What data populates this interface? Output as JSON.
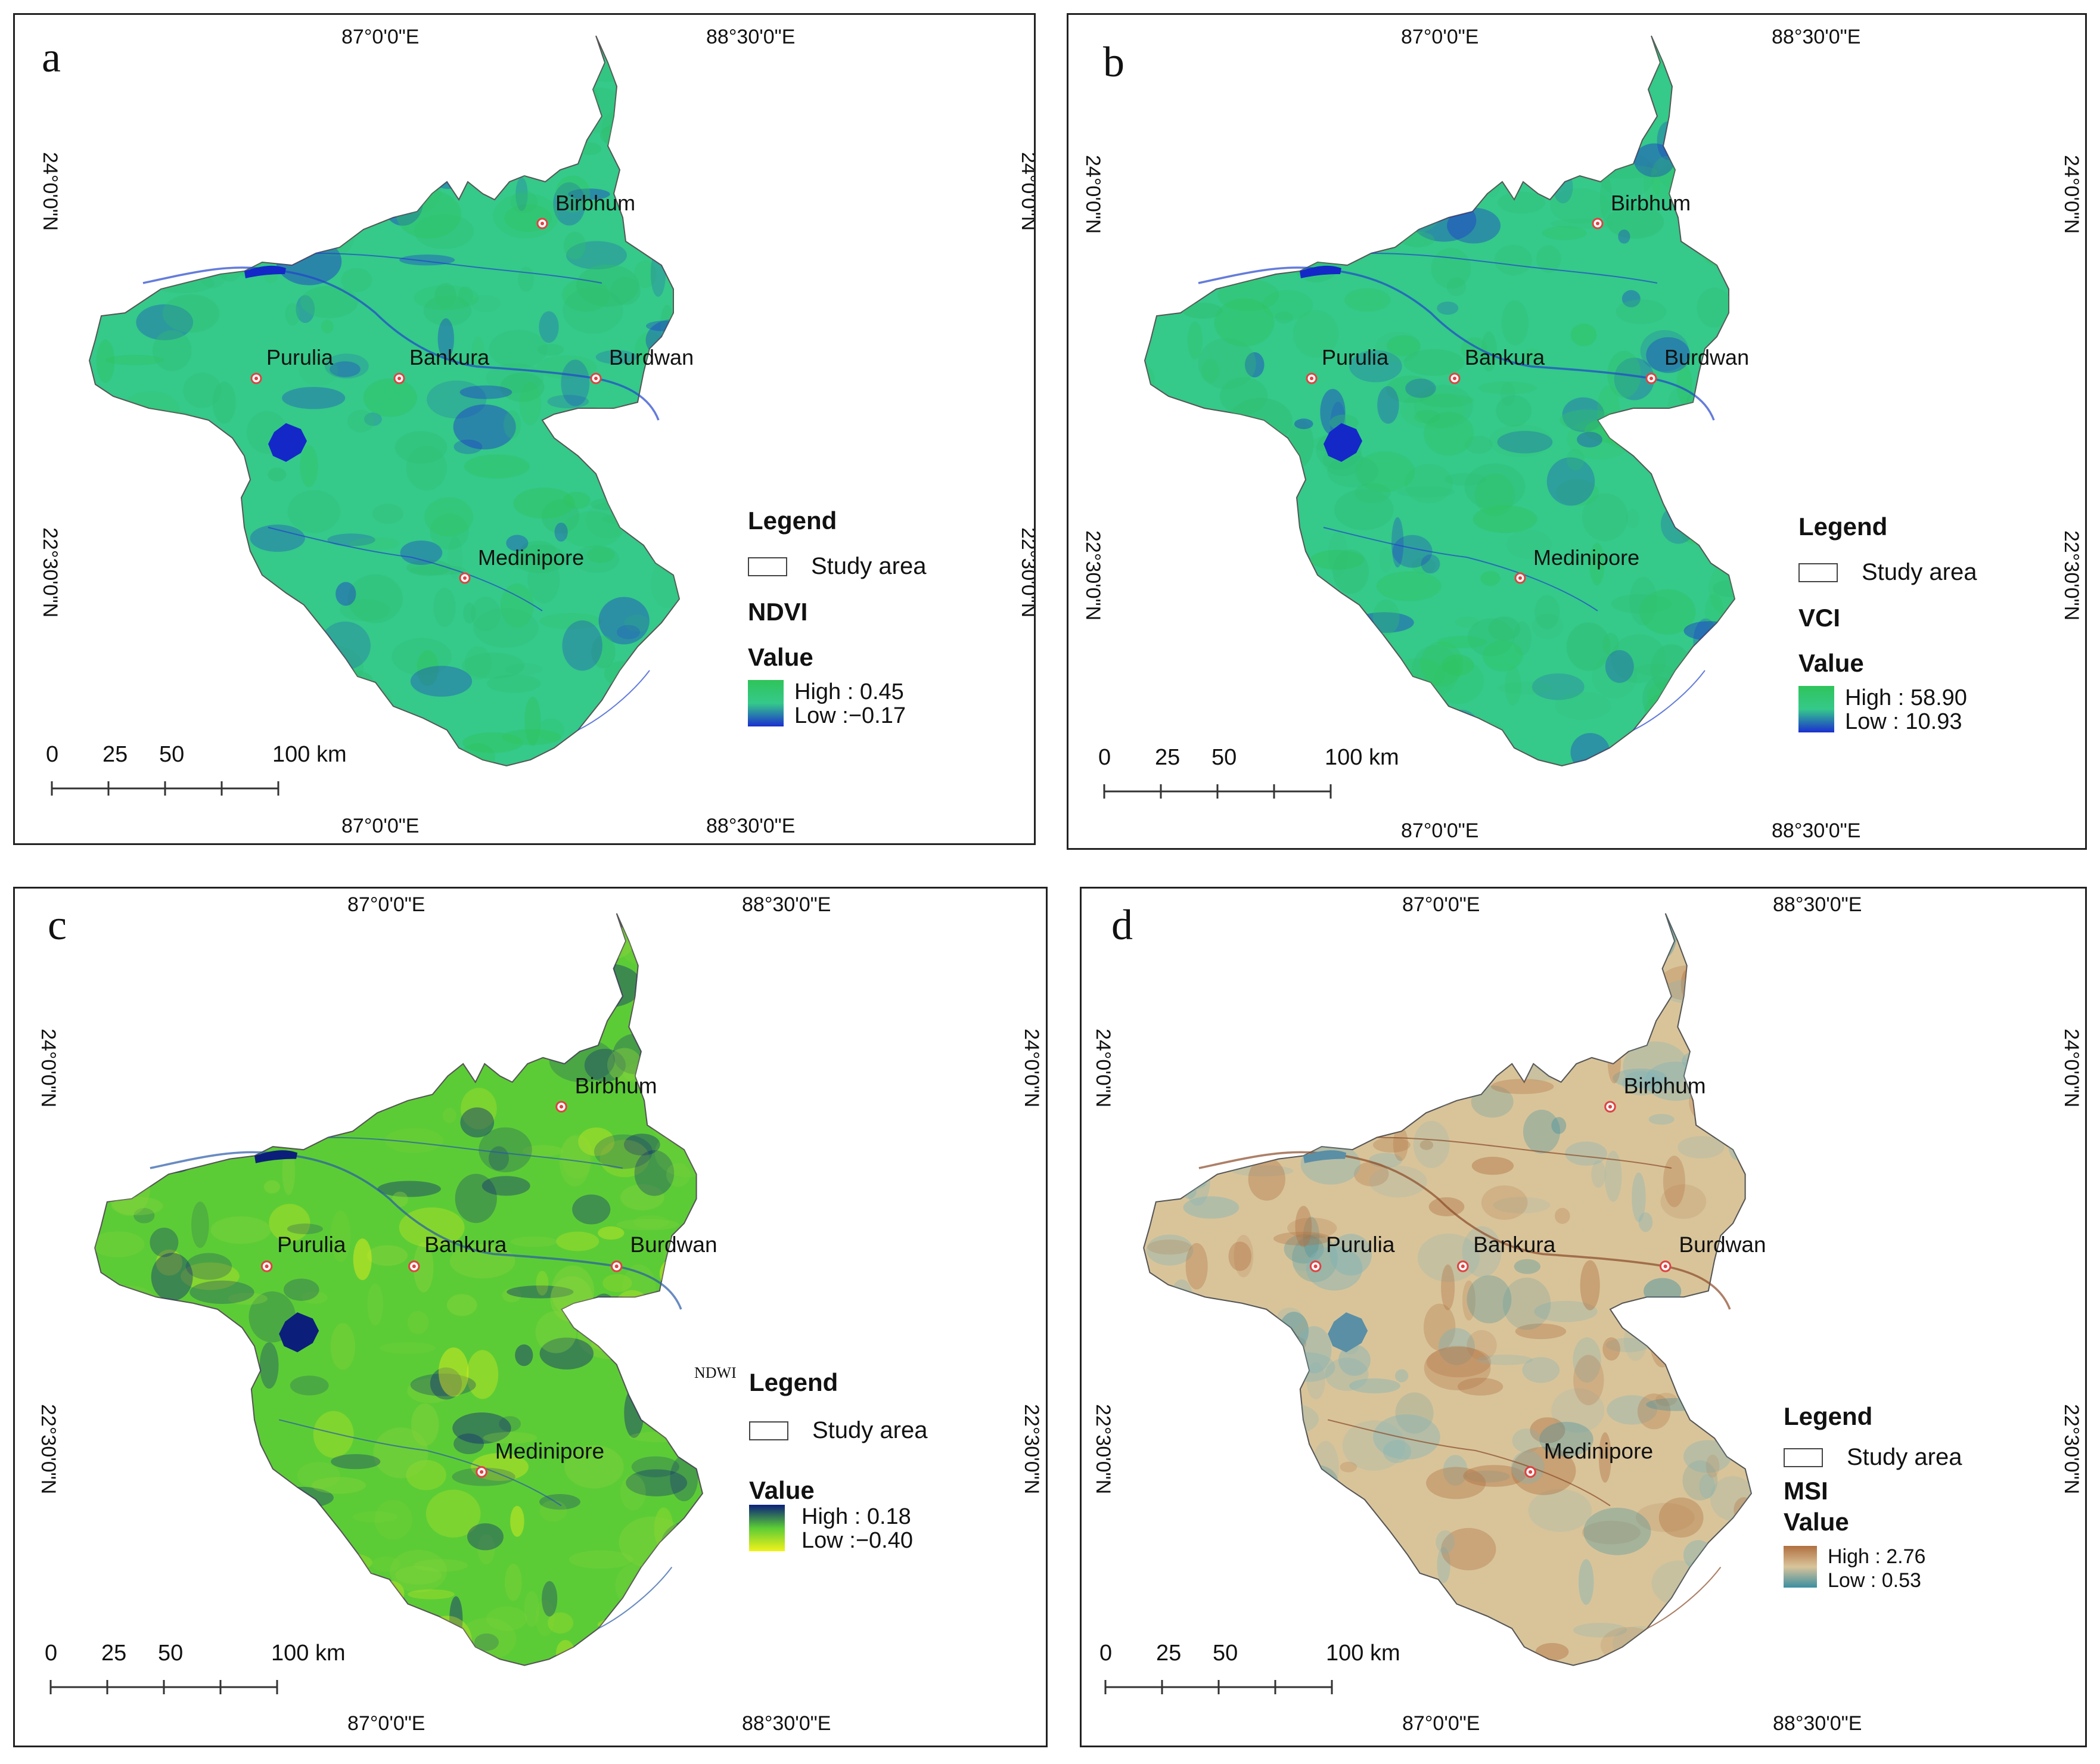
{
  "graticule": {
    "lon_left": "87°0'0\"E",
    "lon_right": "88°30'0\"E",
    "lat_top": "24°0'0\"N",
    "lat_bottom": "22°30'0\"N"
  },
  "cities": [
    "Birbhum",
    "Purulia",
    "Bankura",
    "Burdwan",
    "Medinipore"
  ],
  "scale": {
    "ticks": [
      "0",
      "25",
      "50",
      "100 km"
    ]
  },
  "legend_common": {
    "title": "Legend",
    "study_area": "Study area",
    "value_label": "Value"
  },
  "panels": [
    {
      "letter": "a",
      "index": "NDVI",
      "high": "High : 0.45",
      "low": "Low :−0.17",
      "colors": {
        "high": "#2fc45a",
        "low": "#1b2fd0",
        "fill": "#35c98a",
        "fill2": "#2fbf6e",
        "water": "#1428c8",
        "river": "#2244cc"
      }
    },
    {
      "letter": "b",
      "index": "VCI",
      "high": "High : 58.90",
      "low": "Low : 10.93",
      "colors": {
        "high": "#2fc45a",
        "low": "#1b2fd0",
        "fill": "#35c98a",
        "fill2": "#2fbf6e",
        "water": "#1428c8",
        "river": "#2244cc"
      }
    },
    {
      "letter": "c",
      "index": "NDWI",
      "high": "High : 0.18",
      "low": "Low :−0.40",
      "colors": {
        "high": "#0b1f7a",
        "low": "#f2f21a",
        "fill": "#5ccc36",
        "fill2": "#8ad43c",
        "water": "#0b1f7a",
        "river": "#2a5aa8"
      }
    },
    {
      "letter": "d",
      "index": "MSI",
      "high": "High : 2.76",
      "low": "Low : 0.53",
      "colors": {
        "high": "#b07040",
        "low": "#3b8ea0",
        "fill": "#d9c49a",
        "fill2": "#7fb3b8",
        "water": "#5a8fa6",
        "river": "#8a4a28"
      }
    }
  ]
}
